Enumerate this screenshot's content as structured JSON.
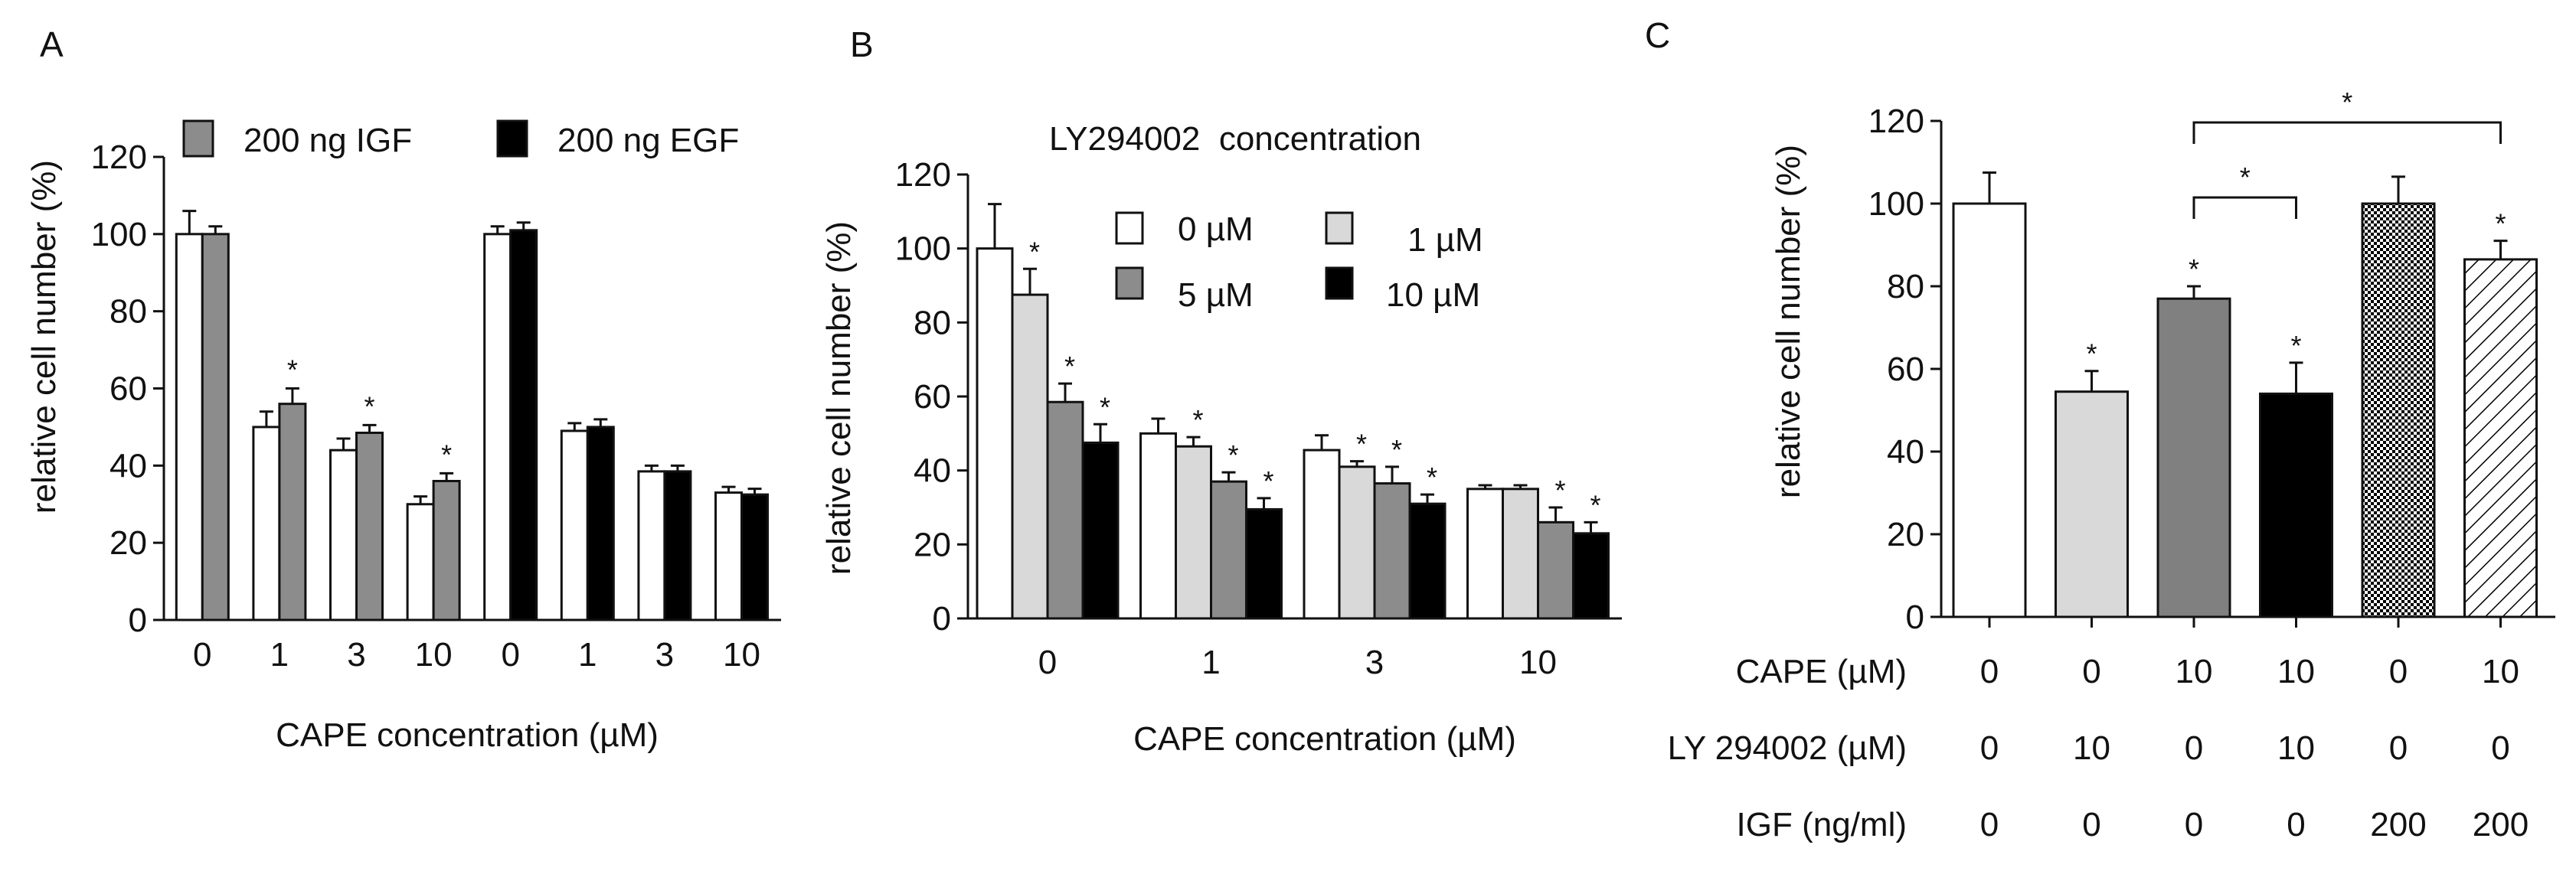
{
  "chart_data": [
    {
      "panel": "A",
      "type": "bar",
      "ylabel": "relative cell number (%)",
      "xlabel": "CAPE concentration (µM)",
      "ylim": [
        0,
        120
      ],
      "yticks": [
        "0",
        "20",
        "40",
        "60",
        "80",
        "100",
        "120"
      ],
      "categories": [
        "0",
        "1",
        "3",
        "10",
        "0",
        "1",
        "3",
        "10"
      ],
      "legend": [
        {
          "label": "200 ng IGF",
          "color": "#8c8c8c"
        },
        {
          "label": "200 ng EGF",
          "color": "#000000"
        }
      ],
      "groups": [
        {
          "ctrl": 100,
          "ctrl_err": 6,
          "treat": 100,
          "treat_err": 2,
          "color": "#8c8c8c",
          "star": ""
        },
        {
          "ctrl": 50,
          "ctrl_err": 4,
          "treat": 56,
          "treat_err": 4,
          "color": "#8c8c8c",
          "star": "*"
        },
        {
          "ctrl": 44,
          "ctrl_err": 3,
          "treat": 48.5,
          "treat_err": 2,
          "color": "#8c8c8c",
          "star": "*"
        },
        {
          "ctrl": 30,
          "ctrl_err": 2,
          "treat": 36,
          "treat_err": 2,
          "color": "#8c8c8c",
          "star": "*"
        },
        {
          "ctrl": 100,
          "ctrl_err": 2,
          "treat": 101,
          "treat_err": 2,
          "color": "#000000",
          "star": ""
        },
        {
          "ctrl": 49,
          "ctrl_err": 2,
          "treat": 50,
          "treat_err": 2,
          "color": "#000000",
          "star": ""
        },
        {
          "ctrl": 38.5,
          "ctrl_err": 1.5,
          "treat": 38.5,
          "treat_err": 1.5,
          "color": "#000000",
          "star": ""
        },
        {
          "ctrl": 33,
          "ctrl_err": 1.5,
          "treat": 32.5,
          "treat_err": 1.5,
          "color": "#000000",
          "star": ""
        }
      ]
    },
    {
      "panel": "B",
      "type": "bar",
      "title": "LY294002  concentration",
      "ylabel": "relative cell number (%)",
      "xlabel": "CAPE concentration (µM)",
      "ylim": [
        0,
        120
      ],
      "yticks": [
        "0",
        "20",
        "40",
        "60",
        "80",
        "100",
        "120"
      ],
      "categories": [
        "0",
        "1",
        "3",
        "10"
      ],
      "series": [
        {
          "name": "0 µM",
          "color": "#ffffff",
          "values": [
            100,
            50,
            45.5,
            35
          ],
          "errors": [
            12,
            4,
            4,
            1
          ],
          "stars": [
            "",
            "",
            "",
            ""
          ]
        },
        {
          "name": "1 µM",
          "color": "#d9d9d9",
          "values": [
            87.5,
            46.5,
            41,
            35
          ],
          "errors": [
            7,
            2.5,
            1.5,
            1
          ],
          "stars": [
            "*",
            "*",
            "*",
            ""
          ]
        },
        {
          "name": "5 µM",
          "color": "#8c8c8c",
          "values": [
            58.5,
            37,
            36.5,
            26
          ],
          "errors": [
            5,
            2.5,
            4.5,
            4
          ],
          "stars": [
            "*",
            "*",
            "*",
            "*"
          ]
        },
        {
          "name": "10 µM",
          "color": "#000000",
          "values": [
            47.5,
            29.5,
            31,
            23
          ],
          "errors": [
            5,
            3,
            2.5,
            3
          ],
          "stars": [
            "*",
            "*",
            "*",
            "*"
          ]
        }
      ]
    },
    {
      "panel": "C",
      "type": "bar",
      "ylabel": "relative cell number (%)",
      "ylim": [
        0,
        120
      ],
      "yticks": [
        "0",
        "20",
        "40",
        "60",
        "80",
        "100",
        "120"
      ],
      "bars": [
        {
          "value": 100,
          "error": 7.5,
          "fill": "white",
          "star": ""
        },
        {
          "value": 54.5,
          "error": 5,
          "fill": "lightgray",
          "star": "*"
        },
        {
          "value": 77,
          "error": 3,
          "fill": "gray",
          "star": "*"
        },
        {
          "value": 54,
          "error": 7.5,
          "fill": "black",
          "star": "*"
        },
        {
          "value": 100,
          "error": 6.5,
          "fill": "checker",
          "star": ""
        },
        {
          "value": 86.5,
          "error": 4.5,
          "fill": "hatch",
          "star": "*"
        }
      ],
      "brackets": [
        {
          "from": 2,
          "to": 3,
          "label": "*"
        },
        {
          "from": 2,
          "to": 5,
          "label": "*"
        }
      ],
      "conditions": [
        {
          "label": "CAPE (µM)",
          "values": [
            "0",
            "0",
            "10",
            "10",
            "0",
            "10"
          ]
        },
        {
          "label": "LY 294002 (µM)",
          "values": [
            "0",
            "10",
            "0",
            "10",
            "0",
            "0"
          ]
        },
        {
          "label": "IGF (ng/ml)",
          "values": [
            "0",
            "0",
            "0",
            "0",
            "200",
            "200"
          ]
        }
      ]
    }
  ]
}
